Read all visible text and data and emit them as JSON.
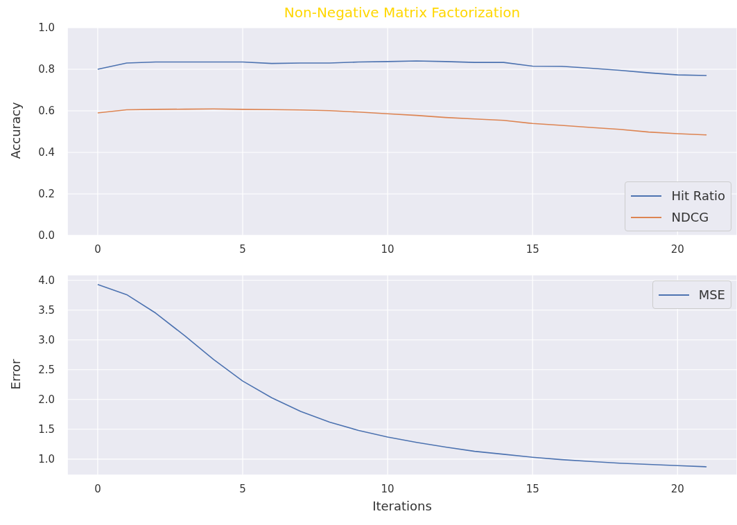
{
  "chart_data": [
    {
      "type": "line",
      "title": "Non-Negative Matrix Factorization",
      "ylabel": "Accuracy",
      "x": [
        0,
        1,
        2,
        3,
        4,
        5,
        6,
        7,
        8,
        9,
        10,
        11,
        12,
        13,
        14,
        15,
        16,
        17,
        18,
        19,
        20,
        21
      ],
      "series": [
        {
          "name": "Hit Ratio",
          "color": "#4c72b0",
          "values": [
            0.8,
            0.83,
            0.835,
            0.835,
            0.835,
            0.835,
            0.828,
            0.83,
            0.83,
            0.835,
            0.837,
            0.84,
            0.837,
            0.833,
            0.833,
            0.815,
            0.814,
            0.805,
            0.795,
            0.783,
            0.773,
            0.77
          ]
        },
        {
          "name": "NDCG",
          "color": "#dd8452",
          "values": [
            0.59,
            0.605,
            0.607,
            0.608,
            0.609,
            0.607,
            0.606,
            0.604,
            0.601,
            0.594,
            0.586,
            0.578,
            0.568,
            0.561,
            0.554,
            0.539,
            0.53,
            0.52,
            0.511,
            0.498,
            0.49,
            0.484
          ]
        }
      ],
      "xlim": [
        -1.05,
        22.05
      ],
      "xticks": [
        0,
        5,
        10,
        15,
        20
      ],
      "ylim": [
        0,
        1
      ],
      "yticks": [
        {
          "value": 0,
          "label": "0.0"
        },
        {
          "value": 0.2,
          "label": "0.2"
        },
        {
          "value": 0.4,
          "label": "0.4"
        },
        {
          "value": 0.6,
          "label": "0.6"
        },
        {
          "value": 0.8,
          "label": "0.8"
        },
        {
          "value": 1,
          "label": "1.0"
        }
      ],
      "grid": true,
      "legend": "bottom right",
      "marker": "none",
      "line_style": "solid"
    },
    {
      "type": "line",
      "xlabel": "Iterations",
      "ylabel": "Error",
      "x": [
        0,
        1,
        2,
        3,
        4,
        5,
        6,
        7,
        8,
        9,
        10,
        11,
        12,
        13,
        14,
        15,
        16,
        17,
        18,
        19,
        20,
        21
      ],
      "series": [
        {
          "name": "MSE",
          "color": "#4c72b0",
          "values": [
            3.93,
            3.76,
            3.45,
            3.07,
            2.67,
            2.31,
            2.03,
            1.8,
            1.62,
            1.48,
            1.37,
            1.28,
            1.2,
            1.13,
            1.08,
            1.03,
            0.99,
            0.96,
            0.93,
            0.91,
            0.89,
            0.87
          ]
        }
      ],
      "xlim": [
        -1.05,
        22.05
      ],
      "xticks": [
        0,
        5,
        10,
        15,
        20
      ],
      "ylim": [
        0.73,
        4.09
      ],
      "yticks": [
        {
          "value": 1,
          "label": "1.0"
        },
        {
          "value": 1.5,
          "label": "1.5"
        },
        {
          "value": 2,
          "label": "2.0"
        },
        {
          "value": 2.5,
          "label": "2.5"
        },
        {
          "value": 3,
          "label": "3.0"
        },
        {
          "value": 3.5,
          "label": "3.5"
        },
        {
          "value": 4,
          "label": "4.0"
        }
      ],
      "grid": true,
      "legend": "top right",
      "marker": "none",
      "line_style": "solid"
    }
  ]
}
